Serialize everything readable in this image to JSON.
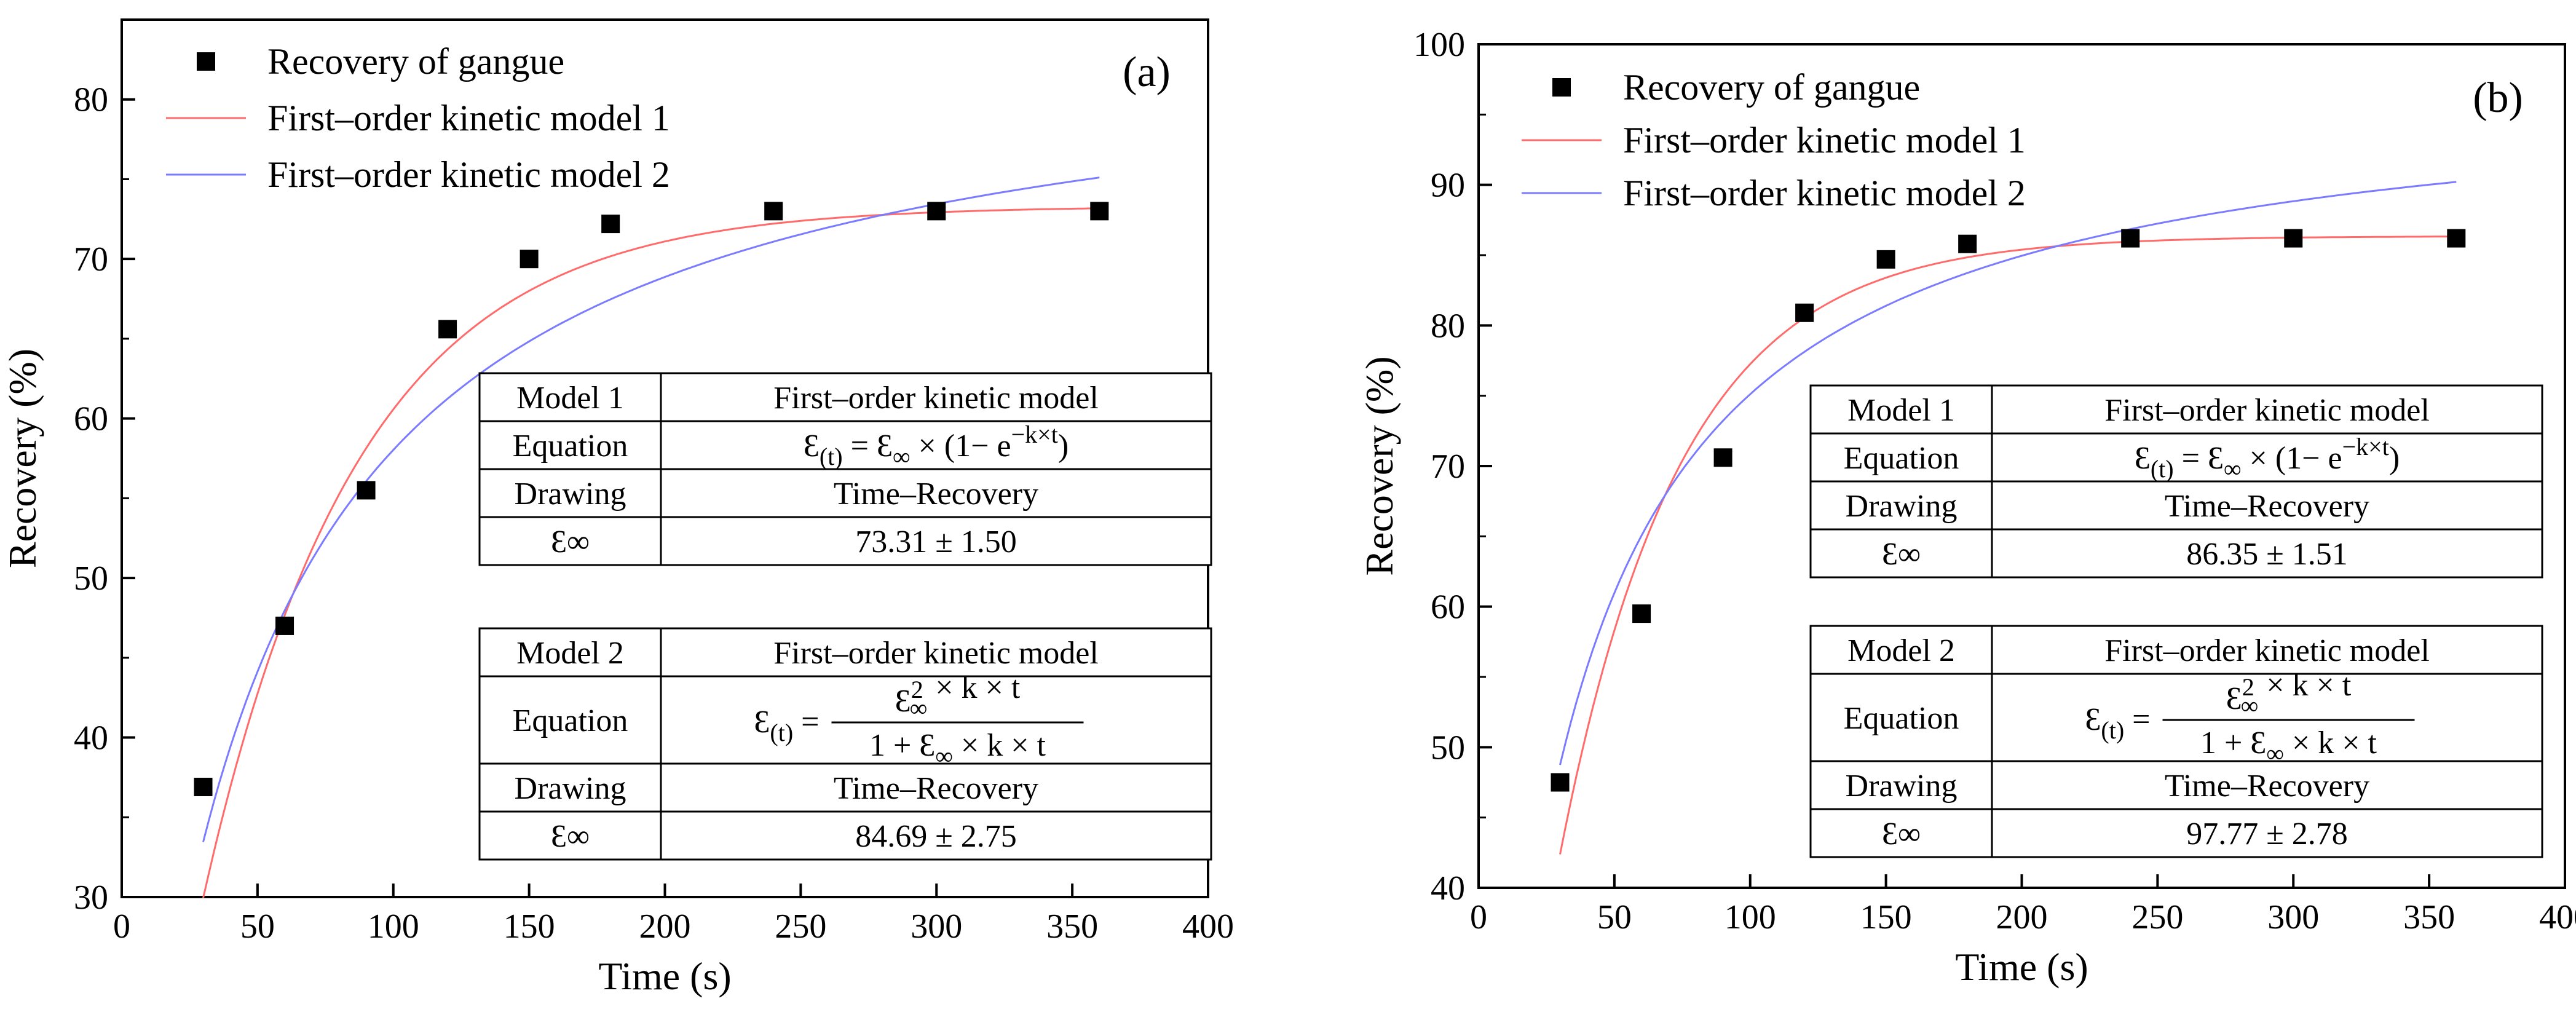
{
  "chart_data": [
    {
      "type": "scatter",
      "panel_label": "(a)",
      "xlabel": "Time (s)",
      "ylabel": "Recovery (%)",
      "xlim": [
        0,
        400
      ],
      "ylim": [
        30,
        85
      ],
      "xticks": [
        0,
        50,
        100,
        150,
        200,
        250,
        300,
        350,
        400
      ],
      "yticks": [
        30,
        40,
        50,
        60,
        70,
        80
      ],
      "legend_position": "top-left",
      "series": [
        {
          "name": "Recovery of gangue",
          "kind": "markers",
          "color": "#000000",
          "x": [
            30,
            60,
            90,
            120,
            150,
            180,
            240,
            300,
            360
          ],
          "y": [
            36.9,
            47.0,
            55.5,
            65.6,
            70.0,
            72.2,
            73.0,
            73.0,
            73.0
          ]
        },
        {
          "name": "First–order kinetic model 1",
          "kind": "line",
          "color": "#ff6b6b",
          "model": "first_order",
          "einf": 73.31,
          "k": 0.0175,
          "x_range": [
            30,
            360
          ]
        },
        {
          "name": "First–order kinetic model 2",
          "kind": "line",
          "color": "#7b7bff",
          "model": "second_order",
          "einf": 84.69,
          "k": 0.000257,
          "x_range": [
            30,
            360
          ]
        }
      ],
      "tables": [
        {
          "header": [
            "Model 1",
            "First–order kinetic model"
          ],
          "equation_label": "Equation",
          "drawing_label": "Drawing",
          "drawing_value": "Time–Recovery",
          "einf_label": "Ɛ∞",
          "einf_value": "73.31 ± 1.50"
        },
        {
          "header": [
            "Model 2",
            "First–order kinetic model"
          ],
          "equation_label": "Equation",
          "drawing_label": "Drawing",
          "drawing_value": "Time–Recovery",
          "einf_label": "Ɛ∞",
          "einf_value": "84.69 ± 2.75"
        }
      ]
    },
    {
      "type": "scatter",
      "panel_label": "(b)",
      "xlabel": "Time (s)",
      "ylabel": "Recovery (%)",
      "xlim": [
        0,
        400
      ],
      "ylim": [
        40,
        100
      ],
      "xticks": [
        0,
        50,
        100,
        150,
        200,
        250,
        300,
        350,
        400
      ],
      "yticks": [
        40,
        50,
        60,
        70,
        80,
        90,
        100
      ],
      "legend_position": "top-left",
      "series": [
        {
          "name": "Recovery of gangue",
          "kind": "markers",
          "color": "#000000",
          "x": [
            30,
            60,
            90,
            120,
            150,
            180,
            240,
            300,
            360
          ],
          "y": [
            47.5,
            59.5,
            70.6,
            80.9,
            84.7,
            85.8,
            86.2,
            86.2,
            86.2
          ]
        },
        {
          "name": "First–order kinetic model 1",
          "kind": "line",
          "color": "#ff6b6b",
          "model": "first_order",
          "einf": 86.35,
          "k": 0.0225,
          "x_range": [
            30,
            360
          ]
        },
        {
          "name": "First–order kinetic model 2",
          "kind": "line",
          "color": "#7b7bff",
          "model": "second_order",
          "einf": 97.77,
          "k": 0.000339,
          "x_range": [
            30,
            360
          ]
        }
      ],
      "tables": [
        {
          "header": [
            "Model 1",
            "First–order kinetic model"
          ],
          "equation_label": "Equation",
          "drawing_label": "Drawing",
          "drawing_value": "Time–Recovery",
          "einf_label": "Ɛ∞",
          "einf_value": "86.35 ± 1.51"
        },
        {
          "header": [
            "Model 2",
            "First–order kinetic model"
          ],
          "equation_label": "Equation",
          "drawing_label": "Drawing",
          "drawing_value": "Time–Recovery",
          "einf_label": "Ɛ∞",
          "einf_value": "97.77 ± 2.78"
        }
      ]
    }
  ]
}
